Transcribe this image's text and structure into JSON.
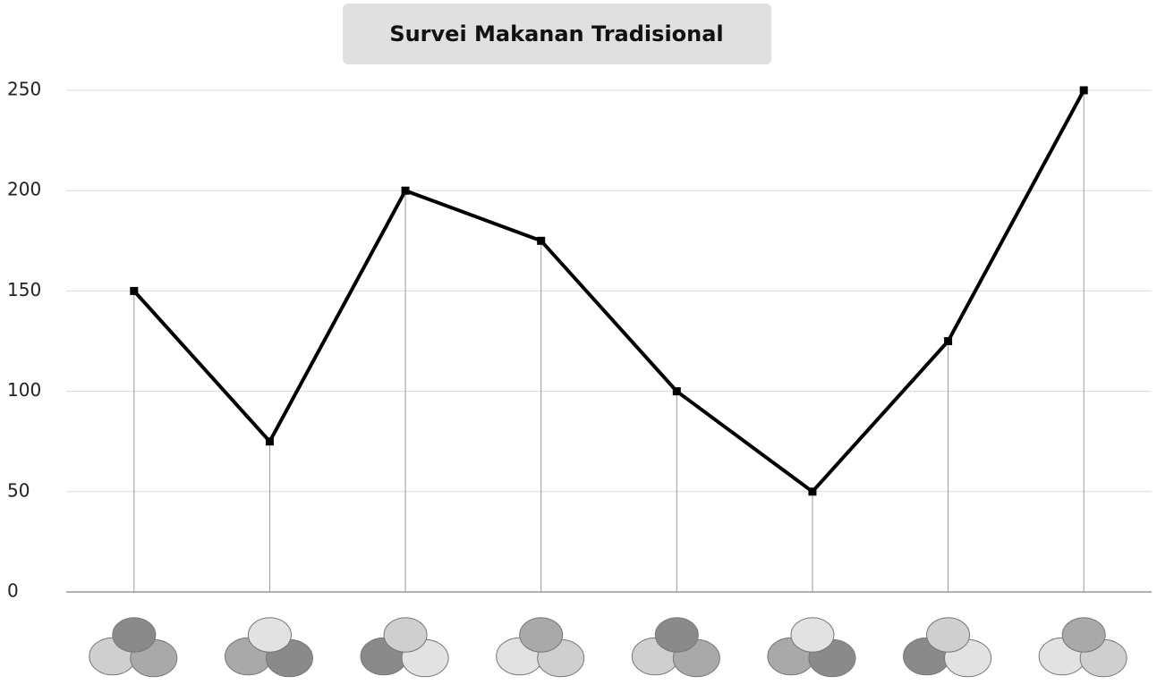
{
  "chart_data": {
    "type": "line",
    "title": "Survei Makanan Tradisional",
    "categories": [
      null,
      null,
      null,
      null,
      null,
      null,
      null,
      null
    ],
    "values": [
      150,
      75,
      200,
      175,
      100,
      50,
      125,
      250
    ],
    "color": "#000000",
    "ylim": [
      0,
      250
    ],
    "yticks": [
      0,
      50,
      100,
      150,
      200,
      250
    ],
    "grid": true
  }
}
